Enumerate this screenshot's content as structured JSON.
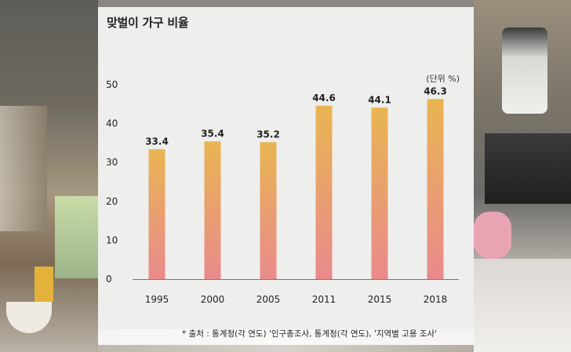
{
  "chart_data": {
    "type": "bar",
    "title": "맞벌이 가구 비율",
    "unit_label": "(단위 %)",
    "categories": [
      "1995",
      "2000",
      "2005",
      "2011",
      "2015",
      "2018"
    ],
    "values": [
      33.4,
      35.4,
      35.2,
      44.6,
      44.1,
      46.3
    ],
    "value_labels": [
      "33.4",
      "35.4",
      "35.2",
      "44.6",
      "44.1",
      "46.3"
    ],
    "ylim": [
      0,
      50
    ],
    "yticks": [
      "0",
      "10",
      "20",
      "30",
      "40",
      "50"
    ],
    "grid": false,
    "bar_gradient": [
      "#e9b552",
      "#e98a8c"
    ],
    "source_note": "* 출처 : 통계청(각 연도) '인구총조사, 통계청(각 연도), '지역별 고용 조사'"
  }
}
